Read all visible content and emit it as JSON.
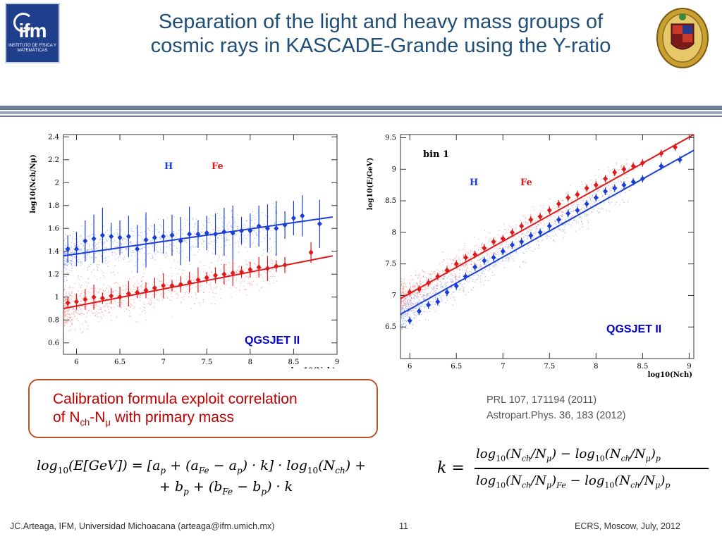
{
  "header": {
    "title": "Separation of the light and heavy mass groups of cosmic rays in KASCADE-Grande using the Y-ratio",
    "logo_text": "ifm",
    "logo_subtext": "INSTITUTO DE FÍSICA Y MATEMÁTICAS"
  },
  "labels": {
    "left_tag": "QGSJET II",
    "right_tag": "QGSJET II"
  },
  "callout": {
    "text_1": "Calibration formula exploit  correlation",
    "text_2": "of   N",
    "sub_ch": "ch",
    "text_3": "-N",
    "sub_mu": "μ",
    "text_4": " with primary mass"
  },
  "references": {
    "line1": "PRL 107, 171194 (2011)",
    "line2": "Astropart.Phys. 36, 183 (2012)"
  },
  "footer": {
    "left": "JC.Arteaga, IFM,  Universidad Michoacana  (arteaga@ifm.umich.mx)",
    "page": "11",
    "right": "ECRS, Moscow, July, 2012"
  },
  "colors": {
    "title": "#1f4e79",
    "h_series": "#1a3fd6",
    "fe_series": "#e01a1a",
    "callout_border": "#c0522a",
    "callout_text": "#c00000",
    "tag": "#0000cc"
  },
  "chart_data": [
    {
      "type": "scatter",
      "xlabel": "log10(Nch)",
      "ylabel": "log10(Nch/Nμ)",
      "xlim": [
        5.85,
        9.0
      ],
      "ylim": [
        0.5,
        2.42
      ],
      "xticks": [
        "6",
        "6.5",
        "7",
        "7.5",
        "8",
        "8.5",
        "9"
      ],
      "yticks": [
        "0.6",
        "0.8",
        "1",
        "1.2",
        "1.4",
        "1.6",
        "1.8",
        "2",
        "2.2",
        "2.4"
      ],
      "legend": [
        "H",
        "Fe"
      ],
      "series": [
        {
          "name": "H",
          "x": [
            5.9,
            6.0,
            6.1,
            6.2,
            6.3,
            6.4,
            6.5,
            6.6,
            6.7,
            6.8,
            6.9,
            7.0,
            7.1,
            7.2,
            7.3,
            7.4,
            7.5,
            7.6,
            7.7,
            7.8,
            7.9,
            8.0,
            8.1,
            8.2,
            8.3,
            8.4,
            8.5,
            8.6,
            8.8
          ],
          "y": [
            1.42,
            1.42,
            1.49,
            1.51,
            1.54,
            1.53,
            1.52,
            1.53,
            1.42,
            1.5,
            1.52,
            1.53,
            1.54,
            1.49,
            1.55,
            1.55,
            1.56,
            1.55,
            1.57,
            1.56,
            1.58,
            1.58,
            1.62,
            1.6,
            1.6,
            1.63,
            1.69,
            1.71,
            1.64
          ],
          "fit": {
            "x": [
              5.85,
              8.95
            ],
            "y": [
              1.36,
              1.7
            ]
          }
        },
        {
          "name": "Fe",
          "x": [
            5.9,
            6.0,
            6.1,
            6.2,
            6.3,
            6.4,
            6.5,
            6.6,
            6.7,
            6.8,
            6.9,
            7.0,
            7.1,
            7.2,
            7.3,
            7.4,
            7.5,
            7.6,
            7.7,
            7.8,
            7.9,
            8.0,
            8.1,
            8.2,
            8.3,
            8.4,
            8.7
          ],
          "y": [
            0.95,
            0.96,
            0.98,
            1.0,
            0.99,
            1.01,
            1.0,
            1.03,
            1.04,
            1.06,
            1.08,
            1.1,
            1.1,
            1.11,
            1.13,
            1.15,
            1.17,
            1.19,
            1.2,
            1.21,
            1.22,
            1.24,
            1.26,
            1.25,
            1.27,
            1.28,
            1.39
          ],
          "fit": {
            "x": [
              5.85,
              8.95
            ],
            "y": [
              0.9,
              1.36
            ]
          }
        }
      ]
    },
    {
      "type": "scatter",
      "title": "bin 1",
      "xlabel": "log10(Nch)",
      "ylabel": "log10(E/GeV)",
      "xlim": [
        5.9,
        9.05
      ],
      "ylim": [
        6.0,
        9.55
      ],
      "xticks": [
        "6",
        "6.5",
        "7",
        "7.5",
        "8",
        "8.5",
        "9"
      ],
      "yticks": [
        "6.5",
        "7",
        "7.5",
        "8",
        "8.5",
        "9",
        "9.5"
      ],
      "legend": [
        "H",
        "Fe"
      ],
      "series": [
        {
          "name": "H",
          "x": [
            6.0,
            6.1,
            6.2,
            6.3,
            6.4,
            6.5,
            6.6,
            6.7,
            6.8,
            6.9,
            7.0,
            7.1,
            7.2,
            7.3,
            7.4,
            7.5,
            7.6,
            7.7,
            7.8,
            7.9,
            8.0,
            8.1,
            8.2,
            8.3,
            8.4,
            8.5,
            8.7,
            8.9
          ],
          "y": [
            6.6,
            6.75,
            6.85,
            6.9,
            7.05,
            7.15,
            7.3,
            7.45,
            7.55,
            7.6,
            7.7,
            7.8,
            7.85,
            7.95,
            8.0,
            8.1,
            8.2,
            8.3,
            8.35,
            8.45,
            8.55,
            8.65,
            8.7,
            8.75,
            8.8,
            8.85,
            9.05,
            9.15
          ],
          "fit": {
            "x": [
              5.9,
              9.05
            ],
            "y": [
              6.7,
              9.3
            ]
          }
        },
        {
          "name": "Fe",
          "x": [
            6.0,
            6.1,
            6.2,
            6.3,
            6.4,
            6.5,
            6.6,
            6.7,
            6.8,
            6.9,
            7.0,
            7.1,
            7.2,
            7.3,
            7.4,
            7.5,
            7.6,
            7.7,
            7.8,
            7.9,
            8.0,
            8.1,
            8.2,
            8.3,
            8.4,
            8.5,
            8.7,
            8.85
          ],
          "y": [
            7.05,
            7.1,
            7.2,
            7.3,
            7.4,
            7.5,
            7.6,
            7.65,
            7.75,
            7.85,
            7.9,
            8.0,
            8.1,
            8.2,
            8.25,
            8.35,
            8.45,
            8.55,
            8.6,
            8.7,
            8.75,
            8.85,
            8.95,
            9.0,
            9.05,
            9.1,
            9.25,
            9.35
          ],
          "fit": {
            "x": [
              5.9,
              9.05
            ],
            "y": [
              6.95,
              9.55
            ]
          }
        }
      ]
    }
  ]
}
